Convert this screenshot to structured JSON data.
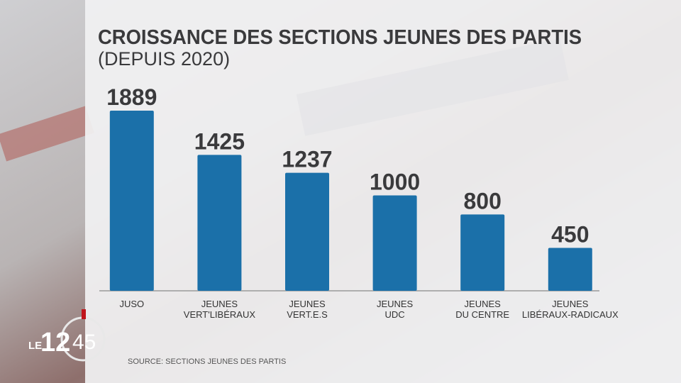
{
  "chart_data": {
    "type": "bar",
    "title": "CROISSANCE DES SECTIONS JEUNES DES PARTIS",
    "subtitle": "(DEPUIS 2020)",
    "categories": [
      [
        "JUSO"
      ],
      [
        "JEUNES",
        "VERT'LIBÉRAUX"
      ],
      [
        "JEUNES",
        "VERT.E.S"
      ],
      [
        "JEUNES",
        "UDC"
      ],
      [
        "JEUNES",
        "DU CENTRE"
      ],
      [
        "JEUNES",
        "LIBÉRAUX-RADICAUX"
      ]
    ],
    "values": [
      1889,
      1425,
      1237,
      1000,
      800,
      450
    ],
    "color": "#1b70a9",
    "source": "SOURCE: SECTIONS JEUNES DES PARTIS"
  },
  "logo": {
    "prefix": "LE",
    "hour": "12",
    "minute": "45"
  }
}
